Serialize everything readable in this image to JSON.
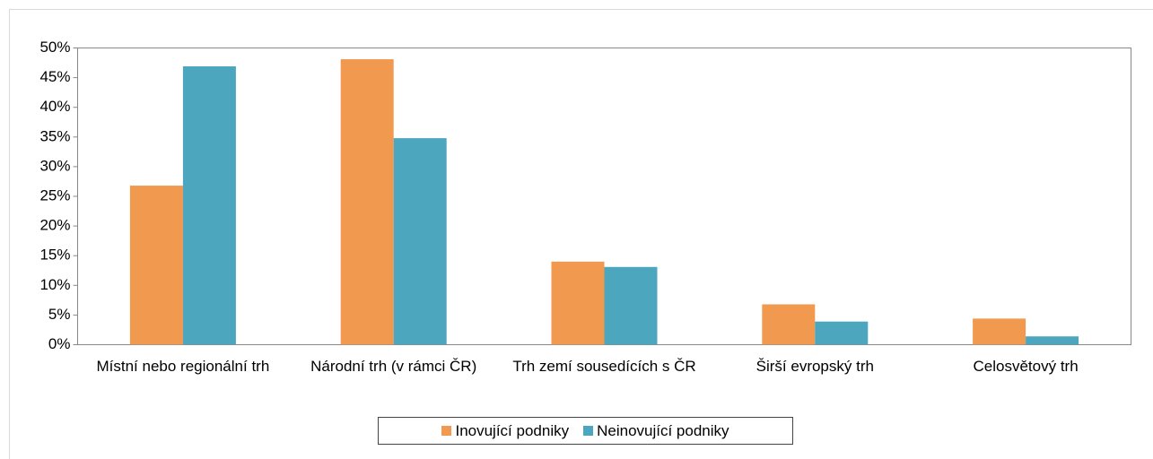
{
  "chart_data": {
    "type": "bar",
    "categories": [
      "Místní nebo regionální trh",
      "Národní trh (v rámci ČR)",
      "Trh zemí sousedících s ČR",
      "Širší evropský trh",
      "Celosvětový trh"
    ],
    "series": [
      {
        "name": "Inovující podniky",
        "color": "#f0994f",
        "values": [
          26.8,
          48.1,
          14.0,
          6.8,
          4.4
        ]
      },
      {
        "name": "Neinovující podniky",
        "color": "#4ba6be",
        "values": [
          46.9,
          34.8,
          13.1,
          3.9,
          1.4
        ]
      }
    ],
    "ylim": [
      0,
      50
    ],
    "yticks": [
      {
        "value": 0,
        "label": "0%"
      },
      {
        "value": 5,
        "label": "5%"
      },
      {
        "value": 10,
        "label": "10%"
      },
      {
        "value": 15,
        "label": "15%"
      },
      {
        "value": 20,
        "label": "20%"
      },
      {
        "value": 25,
        "label": "25%"
      },
      {
        "value": 30,
        "label": "30%"
      },
      {
        "value": 35,
        "label": "35%"
      },
      {
        "value": 40,
        "label": "40%"
      },
      {
        "value": 45,
        "label": "45%"
      },
      {
        "value": 50,
        "label": "50%"
      }
    ],
    "grid": false,
    "legend": "bottom"
  }
}
